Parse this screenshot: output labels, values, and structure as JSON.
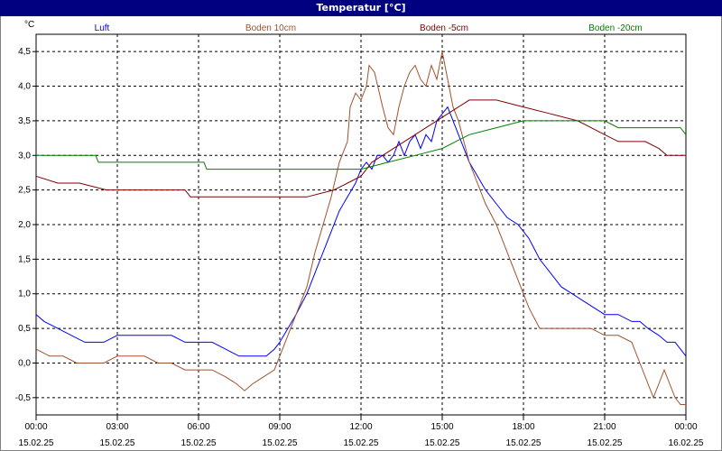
{
  "window": {
    "title": "Temperatur [°C]"
  },
  "chart_data": {
    "type": "line",
    "title": "Temperatur [°C]",
    "ylabel": "°C",
    "xlabel": "",
    "ylim": [
      -0.75,
      4.75
    ],
    "yticks": [
      "4,5",
      "4,0",
      "3,5",
      "3,0",
      "2,5",
      "2,0",
      "1,5",
      "1,0",
      "0,5",
      "0,0",
      "-0,5"
    ],
    "ytick_values": [
      4.5,
      4.0,
      3.5,
      3.0,
      2.5,
      2.0,
      1.5,
      1.0,
      0.5,
      0.0,
      -0.5
    ],
    "xlim_hours": [
      0,
      24
    ],
    "xticks": [
      {
        "time": "00:00",
        "date": "15.02.25"
      },
      {
        "time": "03:00",
        "date": "15.02.25"
      },
      {
        "time": "06:00",
        "date": "15.02.25"
      },
      {
        "time": "09:00",
        "date": "15.02.25"
      },
      {
        "time": "12:00",
        "date": "15.02.25"
      },
      {
        "time": "15:00",
        "date": "15.02.25"
      },
      {
        "time": "18:00",
        "date": "15.02.25"
      },
      {
        "time": "21:00",
        "date": "15.02.25"
      },
      {
        "time": "00:00",
        "date": "16.02.25"
      }
    ],
    "grid": true,
    "legend_position": "top",
    "series": [
      {
        "name": "Luft",
        "color": "#0000ff",
        "points": [
          [
            0,
            0.7
          ],
          [
            0.3,
            0.6
          ],
          [
            0.8,
            0.5
          ],
          [
            1.3,
            0.4
          ],
          [
            1.8,
            0.3
          ],
          [
            2.5,
            0.3
          ],
          [
            3.0,
            0.4
          ],
          [
            3.5,
            0.4
          ],
          [
            4.0,
            0.4
          ],
          [
            4.5,
            0.4
          ],
          [
            5.0,
            0.4
          ],
          [
            5.5,
            0.3
          ],
          [
            6.0,
            0.3
          ],
          [
            6.5,
            0.3
          ],
          [
            7.0,
            0.2
          ],
          [
            7.5,
            0.1
          ],
          [
            8.0,
            0.1
          ],
          [
            8.5,
            0.1
          ],
          [
            8.8,
            0.2
          ],
          [
            9.0,
            0.3
          ],
          [
            9.3,
            0.5
          ],
          [
            9.6,
            0.7
          ],
          [
            10.0,
            1.0
          ],
          [
            10.3,
            1.3
          ],
          [
            10.6,
            1.6
          ],
          [
            10.9,
            1.9
          ],
          [
            11.2,
            2.2
          ],
          [
            11.5,
            2.4
          ],
          [
            11.8,
            2.6
          ],
          [
            12.0,
            2.8
          ],
          [
            12.2,
            2.9
          ],
          [
            12.4,
            2.8
          ],
          [
            12.6,
            3.0
          ],
          [
            12.8,
            3.0
          ],
          [
            13.0,
            2.9
          ],
          [
            13.2,
            3.0
          ],
          [
            13.4,
            3.2
          ],
          [
            13.6,
            3.0
          ],
          [
            13.8,
            3.2
          ],
          [
            14.0,
            3.3
          ],
          [
            14.2,
            3.1
          ],
          [
            14.4,
            3.3
          ],
          [
            14.6,
            3.2
          ],
          [
            14.8,
            3.5
          ],
          [
            15.0,
            3.6
          ],
          [
            15.2,
            3.7
          ],
          [
            15.4,
            3.5
          ],
          [
            15.6,
            3.3
          ],
          [
            15.8,
            3.1
          ],
          [
            16.0,
            2.9
          ],
          [
            16.3,
            2.7
          ],
          [
            16.6,
            2.5
          ],
          [
            17.0,
            2.3
          ],
          [
            17.4,
            2.1
          ],
          [
            17.8,
            2.0
          ],
          [
            18.2,
            1.8
          ],
          [
            18.6,
            1.5
          ],
          [
            19.0,
            1.3
          ],
          [
            19.4,
            1.1
          ],
          [
            19.8,
            1.0
          ],
          [
            20.2,
            0.9
          ],
          [
            20.6,
            0.8
          ],
          [
            21.0,
            0.7
          ],
          [
            21.5,
            0.7
          ],
          [
            22.0,
            0.6
          ],
          [
            22.3,
            0.6
          ],
          [
            22.6,
            0.5
          ],
          [
            23.0,
            0.4
          ],
          [
            23.3,
            0.3
          ],
          [
            23.6,
            0.3
          ],
          [
            23.8,
            0.2
          ],
          [
            24.0,
            0.1
          ]
        ]
      },
      {
        "name": "Boden 10cm",
        "color": "#a0522d",
        "points": [
          [
            0,
            0.2
          ],
          [
            0.5,
            0.1
          ],
          [
            1.0,
            0.1
          ],
          [
            1.5,
            0.0
          ],
          [
            2.0,
            0.0
          ],
          [
            2.5,
            0.0
          ],
          [
            3.0,
            0.1
          ],
          [
            3.5,
            0.1
          ],
          [
            4.0,
            0.1
          ],
          [
            4.5,
            0.0
          ],
          [
            5.0,
            0.0
          ],
          [
            5.5,
            -0.1
          ],
          [
            6.0,
            -0.1
          ],
          [
            6.5,
            -0.1
          ],
          [
            7.0,
            -0.2
          ],
          [
            7.4,
            -0.3
          ],
          [
            7.7,
            -0.4
          ],
          [
            8.0,
            -0.3
          ],
          [
            8.4,
            -0.2
          ],
          [
            8.8,
            -0.1
          ],
          [
            9.0,
            0.1
          ],
          [
            9.3,
            0.4
          ],
          [
            9.6,
            0.7
          ],
          [
            10.0,
            1.1
          ],
          [
            10.3,
            1.6
          ],
          [
            10.6,
            2.0
          ],
          [
            10.9,
            2.4
          ],
          [
            11.2,
            2.9
          ],
          [
            11.5,
            3.2
          ],
          [
            11.6,
            3.7
          ],
          [
            11.8,
            3.9
          ],
          [
            12.0,
            3.8
          ],
          [
            12.2,
            4.0
          ],
          [
            12.3,
            4.3
          ],
          [
            12.5,
            4.2
          ],
          [
            12.8,
            3.7
          ],
          [
            13.0,
            3.4
          ],
          [
            13.2,
            3.3
          ],
          [
            13.4,
            3.7
          ],
          [
            13.6,
            4.0
          ],
          [
            13.8,
            4.2
          ],
          [
            14.0,
            4.3
          ],
          [
            14.2,
            4.1
          ],
          [
            14.4,
            4.0
          ],
          [
            14.6,
            4.3
          ],
          [
            14.8,
            4.1
          ],
          [
            15.0,
            4.5
          ],
          [
            15.2,
            4.1
          ],
          [
            15.4,
            3.7
          ],
          [
            15.6,
            3.5
          ],
          [
            15.8,
            3.2
          ],
          [
            16.0,
            2.9
          ],
          [
            16.3,
            2.6
          ],
          [
            16.6,
            2.3
          ],
          [
            17.0,
            2.0
          ],
          [
            17.4,
            1.6
          ],
          [
            17.8,
            1.2
          ],
          [
            18.2,
            0.8
          ],
          [
            18.6,
            0.5
          ],
          [
            19.0,
            0.5
          ],
          [
            19.5,
            0.5
          ],
          [
            20.0,
            0.5
          ],
          [
            20.5,
            0.5
          ],
          [
            21.0,
            0.4
          ],
          [
            21.5,
            0.4
          ],
          [
            22.0,
            0.3
          ],
          [
            22.3,
            0.0
          ],
          [
            22.6,
            -0.3
          ],
          [
            22.8,
            -0.5
          ],
          [
            23.0,
            -0.3
          ],
          [
            23.2,
            -0.1
          ],
          [
            23.4,
            -0.3
          ],
          [
            23.6,
            -0.5
          ],
          [
            23.8,
            -0.6
          ],
          [
            24.0,
            -0.6
          ]
        ]
      },
      {
        "name": "Boden -5cm",
        "color": "#800000",
        "points": [
          [
            0,
            2.7
          ],
          [
            0.8,
            2.6
          ],
          [
            1.6,
            2.6
          ],
          [
            2.6,
            2.5
          ],
          [
            4.0,
            2.5
          ],
          [
            5.5,
            2.5
          ],
          [
            5.7,
            2.4
          ],
          [
            7.0,
            2.4
          ],
          [
            8.5,
            2.4
          ],
          [
            10.0,
            2.4
          ],
          [
            11.0,
            2.5
          ],
          [
            11.5,
            2.6
          ],
          [
            12.0,
            2.7
          ],
          [
            12.4,
            2.9
          ],
          [
            12.8,
            3.0
          ],
          [
            13.2,
            3.1
          ],
          [
            13.6,
            3.2
          ],
          [
            14.0,
            3.3
          ],
          [
            14.4,
            3.4
          ],
          [
            14.8,
            3.5
          ],
          [
            15.2,
            3.6
          ],
          [
            15.6,
            3.7
          ],
          [
            16.0,
            3.8
          ],
          [
            17.0,
            3.8
          ],
          [
            18.0,
            3.7
          ],
          [
            19.0,
            3.6
          ],
          [
            20.0,
            3.5
          ],
          [
            20.5,
            3.4
          ],
          [
            21.0,
            3.3
          ],
          [
            21.5,
            3.2
          ],
          [
            22.5,
            3.2
          ],
          [
            23.0,
            3.1
          ],
          [
            23.3,
            3.0
          ],
          [
            24.0,
            3.0
          ]
        ]
      },
      {
        "name": "Boden -20cm",
        "color": "#008000",
        "points": [
          [
            0,
            3.0
          ],
          [
            1.0,
            3.0
          ],
          [
            2.2,
            3.0
          ],
          [
            2.3,
            2.9
          ],
          [
            4.0,
            2.9
          ],
          [
            6.2,
            2.9
          ],
          [
            6.3,
            2.8
          ],
          [
            9.0,
            2.8
          ],
          [
            12.0,
            2.8
          ],
          [
            13.0,
            2.9
          ],
          [
            14.0,
            3.0
          ],
          [
            15.0,
            3.1
          ],
          [
            15.5,
            3.2
          ],
          [
            16.0,
            3.3
          ],
          [
            17.0,
            3.4
          ],
          [
            18.0,
            3.5
          ],
          [
            19.0,
            3.5
          ],
          [
            20.0,
            3.5
          ],
          [
            21.0,
            3.5
          ],
          [
            21.5,
            3.4
          ],
          [
            23.0,
            3.4
          ],
          [
            23.8,
            3.4
          ],
          [
            24.0,
            3.3
          ]
        ]
      }
    ]
  }
}
